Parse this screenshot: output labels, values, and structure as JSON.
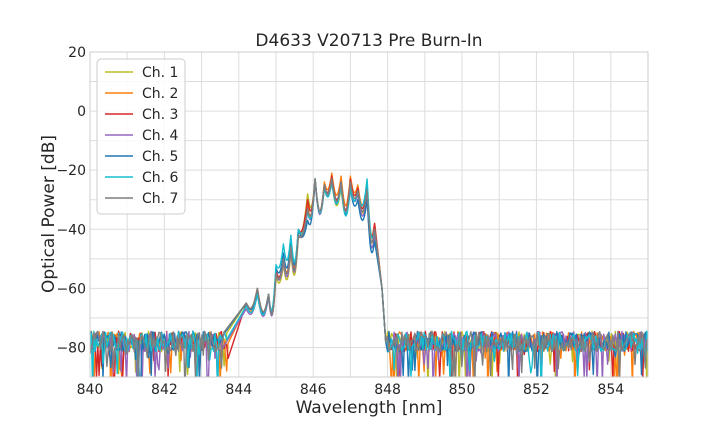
{
  "chart_data": {
    "type": "line",
    "title": "D4633 V20713 Pre Burn-In",
    "xlabel": "Wavelength [nm]",
    "ylabel": "Optical Power [dB]",
    "xlim": [
      840,
      855
    ],
    "ylim": [
      -90,
      20
    ],
    "xticks": [
      840,
      842,
      844,
      846,
      848,
      850,
      852,
      854
    ],
    "yticks": [
      20,
      0,
      -20,
      -40,
      -60,
      -80
    ],
    "ytick_labels": [
      "20",
      "0",
      "−20",
      "−40",
      "−60",
      "−80"
    ],
    "grid": true,
    "legend_position": "top-left",
    "noise_floor_db": -78,
    "series": [
      {
        "name": "Ch. 1",
        "color": "#bcbd22",
        "x": [
          844.2,
          844.5,
          844.8,
          845.0,
          845.2,
          845.4,
          845.6,
          845.85,
          846.05,
          846.3,
          846.5,
          846.75,
          847.0,
          847.2,
          847.45,
          847.65
        ],
        "y": [
          -65,
          -60,
          -62,
          -56,
          -52,
          -48,
          -43,
          -28,
          -23,
          -26,
          -24,
          -26,
          -24,
          -27,
          -28,
          -40
        ]
      },
      {
        "name": "Ch. 2",
        "color": "#ff7f0e",
        "x": [
          844.2,
          844.5,
          844.8,
          845.0,
          845.2,
          845.4,
          845.6,
          845.85,
          846.05,
          846.3,
          846.5,
          846.75,
          847.0,
          847.2,
          847.45,
          847.65
        ],
        "y": [
          -66,
          -61,
          -62,
          -55,
          -50,
          -45,
          -40,
          -32,
          -24,
          -24,
          -21,
          -22,
          -22,
          -25,
          -25,
          -38
        ]
      },
      {
        "name": "Ch. 3",
        "color": "#d62728",
        "x": [
          844.2,
          844.5,
          844.8,
          845.0,
          845.2,
          845.4,
          845.6,
          845.85,
          846.05,
          846.3,
          846.5,
          846.75,
          847.0,
          847.2,
          847.45,
          847.65
        ],
        "y": [
          -65,
          -60,
          -62,
          -54,
          -50,
          -46,
          -41,
          -30,
          -23,
          -25,
          -22,
          -24,
          -23,
          -26,
          -26,
          -38
        ]
      },
      {
        "name": "Ch. 4",
        "color": "#9467bd",
        "x": [
          844.2,
          844.5,
          844.8,
          845.0,
          845.2,
          845.4,
          845.6,
          845.85,
          846.05,
          846.3,
          846.5,
          846.75,
          847.0,
          847.2,
          847.45,
          847.65
        ],
        "y": [
          -67,
          -62,
          -63,
          -55,
          -51,
          -47,
          -42,
          -34,
          -24,
          -26,
          -23,
          -25,
          -25,
          -28,
          -29,
          -42
        ]
      },
      {
        "name": "Ch. 5",
        "color": "#1f77b4",
        "x": [
          844.2,
          844.5,
          844.8,
          845.0,
          845.2,
          845.4,
          845.6,
          845.85,
          846.05,
          846.3,
          846.5,
          846.75,
          847.0,
          847.2,
          847.45,
          847.65
        ],
        "y": [
          -65,
          -61,
          -62,
          -53,
          -48,
          -44,
          -40,
          -37,
          -23,
          -25,
          -23,
          -24,
          -26,
          -30,
          -30,
          -44
        ]
      },
      {
        "name": "Ch. 6",
        "color": "#17becf",
        "x": [
          844.2,
          844.5,
          844.8,
          845.0,
          845.2,
          845.4,
          845.6,
          845.85,
          846.05,
          846.3,
          846.5,
          846.75,
          847.0,
          847.2,
          847.45,
          847.65
        ],
        "y": [
          -66,
          -62,
          -62,
          -52,
          -45,
          -42,
          -40,
          -34,
          -23,
          -26,
          -24,
          -25,
          -26,
          -27,
          -23,
          -40
        ]
      },
      {
        "name": "Ch. 7",
        "color": "#7f7f7f",
        "x": [
          844.2,
          844.5,
          844.8,
          845.0,
          845.2,
          845.4,
          845.6,
          845.85,
          846.05,
          846.3,
          846.5,
          846.75,
          847.0,
          847.2,
          847.45,
          847.65
        ],
        "y": [
          -65,
          -60,
          -62,
          -55,
          -50,
          -46,
          -42,
          -33,
          -23,
          -25,
          -23,
          -24,
          -24,
          -27,
          -27,
          -40
        ]
      }
    ]
  }
}
